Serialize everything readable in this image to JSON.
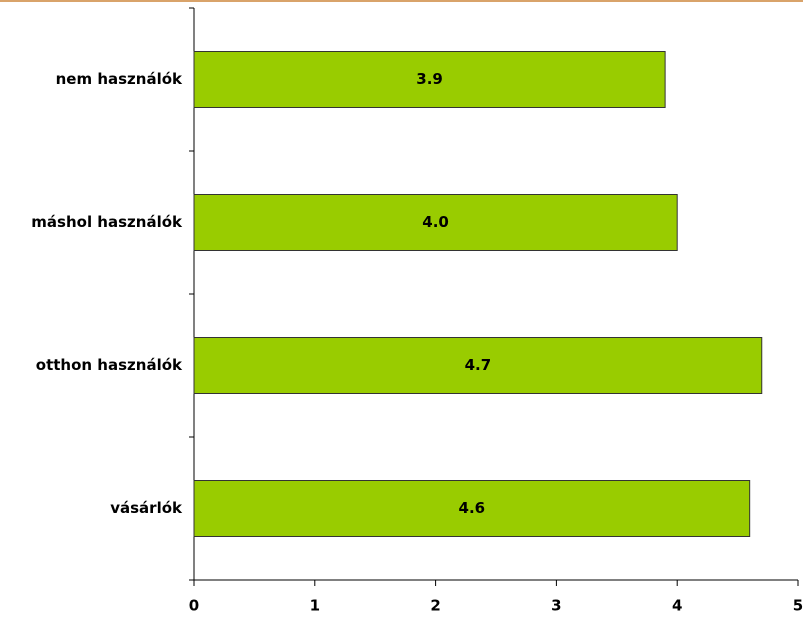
{
  "chart_data": {
    "type": "bar",
    "orientation": "horizontal",
    "categories": [
      "nem használók",
      "máshol használók",
      "otthon használók",
      "vásárlók"
    ],
    "values": [
      3.9,
      4.0,
      4.7,
      4.6
    ],
    "value_labels": [
      "3.9",
      "4.0",
      "4.7",
      "4.6"
    ],
    "color": "#99cc00",
    "xlim": [
      0,
      5
    ],
    "xticks": [
      0,
      1,
      2,
      3,
      4,
      5
    ],
    "grid": false
  }
}
